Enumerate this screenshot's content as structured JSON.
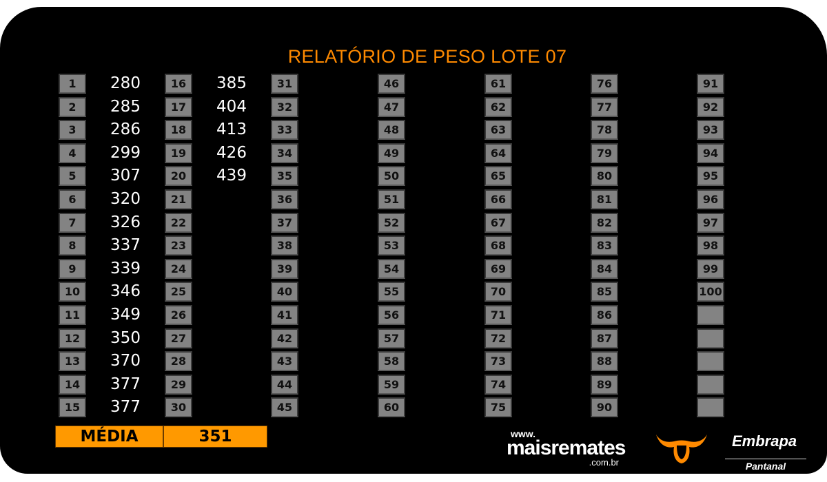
{
  "title": "RELATÓRIO DE PESO LOTE 07",
  "columns": [
    {
      "numbers": [
        "1",
        "2",
        "3",
        "4",
        "5",
        "6",
        "7",
        "8",
        "9",
        "10",
        "11",
        "12",
        "13",
        "14",
        "15"
      ],
      "weights": [
        "280",
        "285",
        "286",
        "299",
        "307",
        "320",
        "326",
        "337",
        "339",
        "346",
        "349",
        "350",
        "370",
        "377",
        "377"
      ]
    },
    {
      "numbers": [
        "16",
        "17",
        "18",
        "19",
        "20",
        "21",
        "22",
        "23",
        "24",
        "25",
        "26",
        "27",
        "28",
        "29",
        "30"
      ],
      "weights": [
        "385",
        "404",
        "413",
        "426",
        "439"
      ]
    },
    {
      "numbers": [
        "31",
        "32",
        "33",
        "34",
        "35",
        "36",
        "37",
        "38",
        "39",
        "40",
        "41",
        "42",
        "43",
        "44",
        "45"
      ],
      "weights": []
    },
    {
      "numbers": [
        "46",
        "47",
        "48",
        "49",
        "50",
        "51",
        "52",
        "53",
        "54",
        "55",
        "56",
        "57",
        "58",
        "59",
        "60"
      ],
      "weights": []
    },
    {
      "numbers": [
        "61",
        "62",
        "63",
        "64",
        "65",
        "66",
        "67",
        "68",
        "69",
        "70",
        "71",
        "72",
        "73",
        "74",
        "75"
      ],
      "weights": []
    },
    {
      "numbers": [
        "76",
        "77",
        "78",
        "79",
        "80",
        "81",
        "82",
        "83",
        "84",
        "85",
        "86",
        "87",
        "88",
        "89",
        "90"
      ],
      "weights": []
    },
    {
      "numbers": [
        "91",
        "92",
        "93",
        "94",
        "95",
        "96",
        "97",
        "98",
        "99",
        "100",
        "",
        "",
        "",
        "",
        ""
      ],
      "weights": []
    }
  ],
  "summary": {
    "label": "MÉDIA",
    "value": "351"
  },
  "logos": {
    "maisremates_www": "www.",
    "maisremates_name": "maisremates",
    "maisremates_domain": ".com.br",
    "embrapa_name": "Embrapa",
    "embrapa_sub": "Pantanal"
  },
  "colors": {
    "accent": "#ff9900",
    "cell": "#838383",
    "background": "#000000"
  }
}
